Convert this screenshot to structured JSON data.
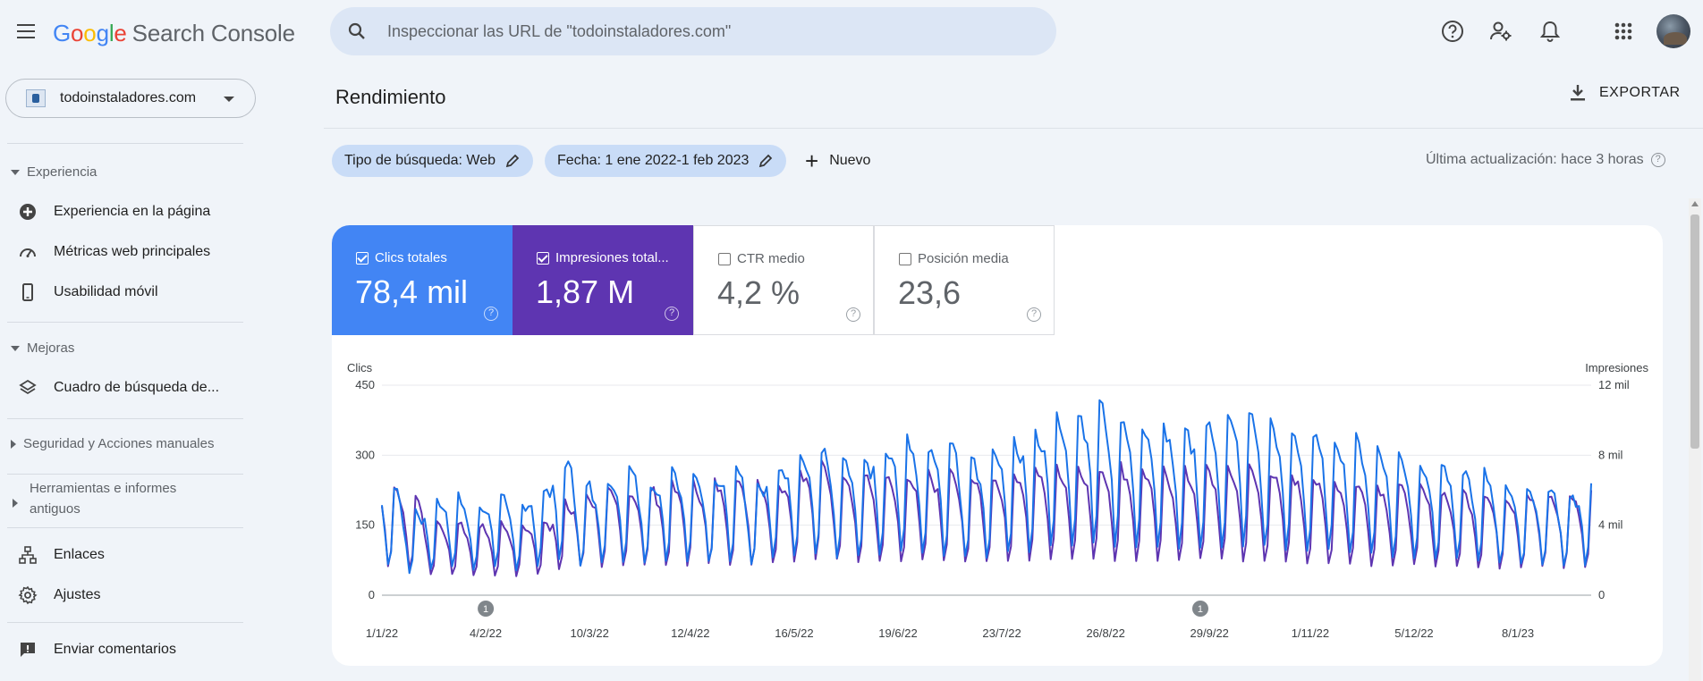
{
  "topbar": {
    "product_name": "Search Console",
    "logo_letters": [
      "G",
      "o",
      "o",
      "g",
      "l",
      "e"
    ],
    "search_placeholder": "Inspeccionar las URL de \"todoinstaladores.com\"",
    "icons": [
      "menu-icon",
      "search-icon",
      "help-icon",
      "user-settings-icon",
      "notifications-icon",
      "apps-grid-icon",
      "avatar"
    ]
  },
  "sidebar": {
    "property": "todoinstaladores.com",
    "sections": {
      "experiencia": "Experiencia",
      "mejoras": "Mejoras",
      "seguridad": "Seguridad y Acciones manuales",
      "herramientas": "Herramientas e informes antiguos"
    },
    "items": {
      "experiencia_pagina": "Experiencia en la página",
      "metricas_web": "Métricas web principales",
      "usabilidad": "Usabilidad móvil",
      "cuadro_busqueda": "Cuadro de búsqueda de...",
      "enlaces": "Enlaces",
      "ajustes": "Ajustes",
      "comentarios": "Enviar comentarios"
    }
  },
  "main": {
    "title": "Rendimiento",
    "export_label": "EXPORTAR",
    "filters": {
      "search_type": "Tipo de búsqueda: Web",
      "date": "Fecha: 1 ene 2022-1 feb 2023",
      "add_label": "Nuevo"
    },
    "last_update": "Última actualización: hace 3 horas",
    "metrics": {
      "clicks": {
        "label": "Clics totales",
        "value": "78,4 mil",
        "checked": true,
        "color": "#4285f4"
      },
      "impressions": {
        "label": "Impresiones total...",
        "value": "1,87 M",
        "checked": true,
        "color": "#5e35b1"
      },
      "ctr": {
        "label": "CTR medio",
        "value": "4,2 %",
        "checked": false
      },
      "position": {
        "label": "Posición media",
        "value": "23,6",
        "checked": false
      }
    }
  },
  "chart_data": {
    "type": "line",
    "left_axis_title": "Clics",
    "right_axis_title": "Impresiones",
    "left_ticks": [
      "450",
      "300",
      "150",
      "0"
    ],
    "right_ticks": [
      "12 mil",
      "8 mil",
      "4 mil",
      "0"
    ],
    "ylim_left": [
      0,
      450
    ],
    "ylim_right": [
      0,
      12000
    ],
    "x_tick_labels": [
      "1/1/22",
      "4/2/22",
      "10/3/22",
      "12/4/22",
      "16/5/22",
      "19/6/22",
      "23/7/22",
      "26/8/22",
      "29/9/22",
      "1/11/22",
      "5/12/22",
      "8/1/23"
    ],
    "x_range": [
      "1/1/22",
      "1/2/23"
    ],
    "annotations": [
      {
        "label": "1",
        "at": "4/2/22"
      },
      {
        "label": "1",
        "at": "26/9/22"
      }
    ],
    "grid": true,
    "series": [
      {
        "name": "Clics",
        "axis": "left",
        "color": "#1a73e8",
        "weekly_peaks": [
          230,
          180,
          200,
          210,
          190,
          220,
          200,
          230,
          290,
          240,
          250,
          270,
          245,
          260,
          265,
          250,
          270,
          230,
          280,
          310,
          320,
          300,
          290,
          320,
          330,
          310,
          320,
          290,
          300,
          330,
          350,
          380,
          395,
          410,
          390,
          370,
          360,
          350,
          370,
          380,
          390,
          370,
          350,
          340,
          340,
          330,
          320,
          300,
          290,
          280,
          270,
          260,
          240,
          230,
          230,
          220,
          240,
          240
        ]
      },
      {
        "name": "Impresiones",
        "axis": "right",
        "color": "#5e35b1",
        "weekly_peaks": [
          6200,
          5500,
          4200,
          4100,
          4000,
          4100,
          4000,
          4300,
          5200,
          5800,
          5900,
          6000,
          6100,
          6200,
          6300,
          6400,
          6500,
          6600,
          6500,
          7200,
          7500,
          7100,
          6800,
          6700,
          6600,
          6900,
          7000,
          6700,
          6800,
          7000,
          7200,
          7400,
          7500,
          7400,
          7300,
          7200,
          7100,
          7000,
          7200,
          7300,
          7200,
          7100,
          6900,
          6700,
          6500,
          6400,
          6300,
          6200,
          6100,
          6000,
          5900,
          5800,
          5700,
          5800,
          5700,
          5700,
          5800,
          6000
        ]
      }
    ]
  }
}
